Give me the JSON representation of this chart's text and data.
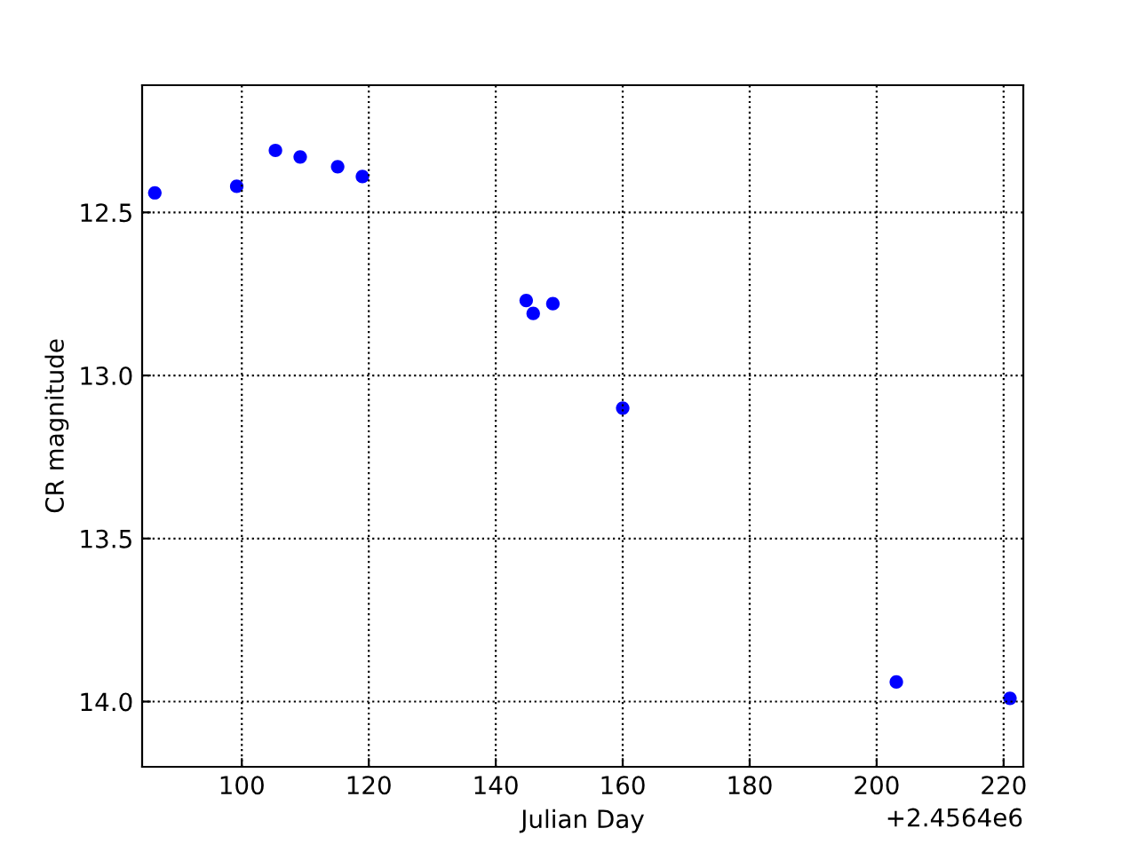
{
  "chart_data": {
    "type": "scatter",
    "xlabel": "Julian Day",
    "ylabel": "CR magnitude",
    "x": [
      86.3,
      99.2,
      105.3,
      109.2,
      115.1,
      119.0,
      144.8,
      145.9,
      149.0,
      160.0,
      203.1,
      221.0
    ],
    "series": [
      {
        "color": "#0000ff",
        "values": [
          12.44,
          12.42,
          12.31,
          12.33,
          12.36,
          12.39,
          12.77,
          12.81,
          12.78,
          13.1,
          13.94,
          13.99
        ]
      }
    ],
    "xlim": [
      84.3,
      223.1
    ],
    "ylim": [
      14.2,
      12.11
    ],
    "xticks": [
      100,
      120,
      140,
      160,
      180,
      200,
      220
    ],
    "yticks": [
      {
        "value": 12.5,
        "label": "12.5"
      },
      {
        "value": 13.0,
        "label": "13.0"
      },
      {
        "value": 13.5,
        "label": "13.5"
      },
      {
        "value": 14.0,
        "label": "14.0"
      }
    ],
    "annotations": [
      "+2.4564e6"
    ],
    "grid": true,
    "marker": "circle"
  }
}
